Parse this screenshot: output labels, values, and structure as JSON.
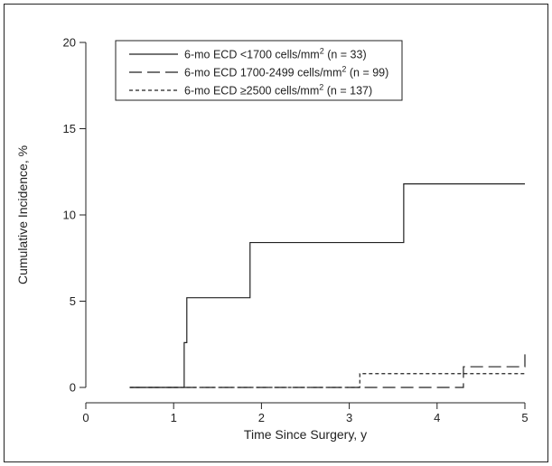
{
  "chart_data": {
    "type": "line",
    "step": true,
    "xlabel": "Time Since Surgery, y",
    "ylabel": "Cumulative Incidence, %",
    "xlim": [
      0,
      5
    ],
    "ylim": [
      0,
      20
    ],
    "xticks": [
      "0",
      "1",
      "2",
      "3",
      "4",
      "5"
    ],
    "yticks": [
      "0",
      "5",
      "10",
      "15",
      "20"
    ],
    "grid": false,
    "legend_position": "top-left",
    "series": [
      {
        "name": "6-mo ECD <1700 cells/mm² (n = 33)",
        "label_parts": {
          "main": "6-mo ECD <1700 cells/mm",
          "sup": "2",
          "tail": " (n = 33)"
        },
        "dash": "solid",
        "x": [
          0.5,
          1.12,
          1.12,
          1.15,
          1.15,
          1.87,
          1.87,
          3.62,
          3.62,
          5.0
        ],
        "y": [
          0,
          0,
          2.6,
          2.6,
          5.2,
          5.2,
          8.4,
          8.4,
          11.8,
          11.8
        ]
      },
      {
        "name": "6-mo ECD 1700-2499 cells/mm² (n = 99)",
        "label_parts": {
          "main": "6-mo ECD 1700-2499 cells/mm",
          "sup": "2",
          "tail": " (n = 99)"
        },
        "dash": "long-dash",
        "x": [
          0.5,
          4.3,
          4.3,
          5.0,
          5.0
        ],
        "y": [
          0,
          0,
          1.2,
          1.2,
          2.0
        ]
      },
      {
        "name": "6-mo ECD ≥2500 cells/mm² (n = 137)",
        "label_parts": {
          "main": "6-mo ECD ≥2500 cells/mm",
          "sup": "2",
          "tail": " (n = 137)"
        },
        "dash": "short-dash",
        "x": [
          0.5,
          3.12,
          3.12,
          5.0
        ],
        "y": [
          0,
          0,
          0.8,
          0.8
        ]
      }
    ]
  }
}
